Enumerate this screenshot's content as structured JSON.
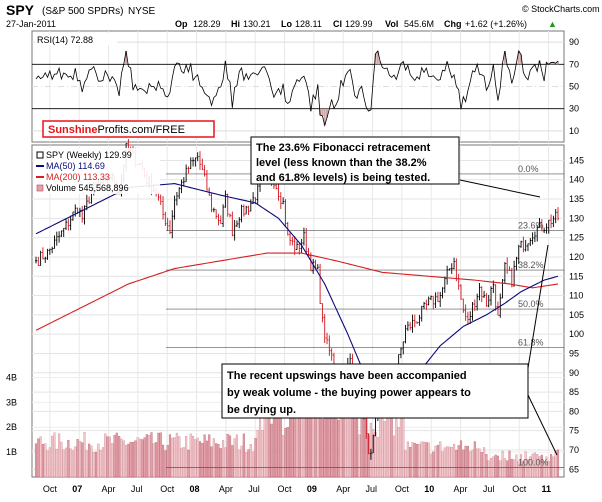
{
  "header": {
    "symbol": "SPY",
    "description": "(S&P 500 SPDRs)",
    "exchange": "NYSE",
    "date": "27-Jan-2011",
    "watermark": "© StockCharts.com",
    "op_label": "Op",
    "op": "128.29",
    "hi_label": "Hi",
    "hi": "130.21",
    "lo_label": "Lo",
    "lo": "128.11",
    "cl_label": "Cl",
    "cl": "129.99",
    "vol_label": "Vol",
    "vol": "545.6M",
    "chg_label": "Chg",
    "chg": "+1.62 (+1.26%)",
    "chg_arrow": "▲"
  },
  "rsi": {
    "label": "RSI(14) 72.88",
    "ticks": [
      10,
      30,
      50,
      70,
      90
    ],
    "ylim": [
      0,
      100
    ],
    "overbought": 70,
    "oversold": 30,
    "midline": 50
  },
  "brand": {
    "sunshine": "Sunshine",
    "profits": "Profits.com/FREE",
    "sunshine_color": "#e8141a"
  },
  "legend": {
    "price": "SPY (Weekly) 129.99",
    "ma50": "MA(50) 114.69",
    "ma200": "MA(200) 113.33",
    "volume": "Volume 545,568,896"
  },
  "annotations": {
    "fib_box": "The 23.6% Fibonacci retracement level (less known than the 38.2% and 61.8% levels) is being tested.",
    "fib_lines": [
      "The 23.6% Fibonacci retracement",
      "level (less known than the 38.2%",
      "and 61.8% levels) is being tested."
    ],
    "volume_lines": [
      "The recent upswings have been accompanied",
      "by weak volume - the buying power appears to",
      "be drying up."
    ]
  },
  "fib_levels": [
    {
      "label": "0.0%",
      "value": 141.5
    },
    {
      "label": "23.6%",
      "value": 126.8
    },
    {
      "label": "38.2%",
      "value": 116.6
    },
    {
      "label": "50.0%",
      "value": 106.5
    },
    {
      "label": "61.8%",
      "value": 96.5
    },
    {
      "label": "100.0%",
      "value": 65.5
    }
  ],
  "chart_data": {
    "type": "line",
    "x_ticks": [
      "Oct",
      "07",
      "Apr",
      "Jul",
      "Oct",
      "08",
      "Apr",
      "Jul",
      "Oct",
      "09",
      "Apr",
      "Jul",
      "Oct",
      "10",
      "Apr",
      "Jul",
      "Oct",
      "11"
    ],
    "y_ticks": [
      65,
      70,
      75,
      80,
      85,
      90,
      95,
      100,
      105,
      110,
      115,
      120,
      125,
      130,
      135,
      140,
      145
    ],
    "ylim": [
      63,
      149
    ],
    "volume_ticks": [
      "1B",
      "2B",
      "3B",
      "4B"
    ],
    "volume_ylim_billions": [
      0,
      4.3
    ],
    "weeks": 227,
    "series": [
      {
        "name": "SPY (Weekly) 129.99",
        "color": "#000000",
        "anchors": [
          [
            0,
            119
          ],
          [
            5,
            121
          ],
          [
            12,
            127
          ],
          [
            18,
            133
          ],
          [
            20,
            130
          ],
          [
            24,
            137
          ],
          [
            32,
            141
          ],
          [
            36,
            137
          ],
          [
            39,
            148
          ],
          [
            42,
            146
          ],
          [
            45,
            144
          ],
          [
            48,
            140
          ],
          [
            52,
            137
          ],
          [
            55,
            131
          ],
          [
            58,
            127
          ],
          [
            60,
            135
          ],
          [
            66,
            143
          ],
          [
            70,
            146
          ],
          [
            73,
            140
          ],
          [
            76,
            133
          ],
          [
            80,
            129
          ],
          [
            82,
            135
          ],
          [
            85,
            127
          ],
          [
            88,
            131
          ],
          [
            92,
            133
          ],
          [
            96,
            137
          ],
          [
            100,
            142
          ],
          [
            103,
            140
          ],
          [
            107,
            134
          ],
          [
            109,
            125
          ],
          [
            113,
            122
          ],
          [
            116,
            125
          ],
          [
            119,
            118
          ],
          [
            122,
            116
          ],
          [
            124,
            103
          ],
          [
            126,
            97
          ],
          [
            130,
            91
          ],
          [
            133,
            89
          ],
          [
            136,
            93
          ],
          [
            139,
            86
          ],
          [
            141,
            84
          ],
          [
            143,
            73
          ],
          [
            145,
            68
          ],
          [
            147,
            77
          ],
          [
            150,
            86
          ],
          [
            153,
            89
          ],
          [
            156,
            91
          ],
          [
            160,
            101
          ],
          [
            165,
            104
          ],
          [
            170,
            108
          ],
          [
            175,
            110
          ],
          [
            179,
            117
          ],
          [
            181,
            119
          ],
          [
            183,
            112
          ],
          [
            185,
            106
          ],
          [
            187,
            103
          ],
          [
            189,
            107
          ],
          [
            192,
            112
          ],
          [
            195,
            108
          ],
          [
            198,
            113
          ],
          [
            200,
            104
          ],
          [
            203,
            117
          ],
          [
            206,
            114
          ],
          [
            209,
            122
          ],
          [
            212,
            124
          ],
          [
            216,
            127
          ],
          [
            220,
            128
          ],
          [
            224,
            130
          ],
          [
            226,
            130
          ]
        ]
      },
      {
        "name": "MA(50) 114.69",
        "color": "#0a0a7a",
        "anchors": [
          [
            0,
            126
          ],
          [
            20,
            132
          ],
          [
            40,
            138
          ],
          [
            60,
            139
          ],
          [
            80,
            136
          ],
          [
            95,
            134
          ],
          [
            105,
            130
          ],
          [
            115,
            123
          ],
          [
            125,
            113
          ],
          [
            135,
            100
          ],
          [
            142,
            90
          ],
          [
            148,
            83
          ],
          [
            152,
            81
          ],
          [
            156,
            81
          ],
          [
            160,
            84
          ],
          [
            167,
            91
          ],
          [
            175,
            97
          ],
          [
            185,
            102
          ],
          [
            195,
            105
          ],
          [
            203,
            108
          ],
          [
            210,
            111
          ],
          [
            220,
            114
          ],
          [
            226,
            115
          ]
        ]
      },
      {
        "name": "MA(200) 113.33",
        "color": "#d42020",
        "anchors": [
          [
            0,
            101
          ],
          [
            20,
            107
          ],
          [
            40,
            113
          ],
          [
            60,
            117
          ],
          [
            80,
            119
          ],
          [
            100,
            121
          ],
          [
            115,
            121
          ],
          [
            130,
            119
          ],
          [
            150,
            116
          ],
          [
            170,
            115
          ],
          [
            190,
            114
          ],
          [
            205,
            113
          ],
          [
            215,
            112
          ],
          [
            226,
            113
          ]
        ]
      }
    ]
  }
}
